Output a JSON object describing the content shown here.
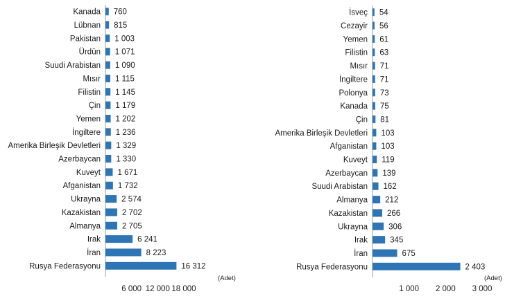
{
  "chart_data": [
    {
      "type": "bar",
      "orientation": "horizontal",
      "unit_label": "(Adet)",
      "categories": [
        "Kanada",
        "Lübnan",
        "Pakistan",
        "Ürdün",
        "Suudi Arabistan",
        "Mısır",
        "Filistin",
        "Çin",
        "Yemen",
        "İngiltere",
        "Amerika Birleşik Devletleri",
        "Azerbaycan",
        "Kuveyt",
        "Afganistan",
        "Ukrayna",
        "Kazakistan",
        "Almanya",
        "Irak",
        "İran",
        "Rusya Federasyonu"
      ],
      "values": [
        760,
        815,
        1003,
        1071,
        1090,
        1115,
        1145,
        1179,
        1202,
        1236,
        1329,
        1330,
        1671,
        1732,
        2574,
        2702,
        2705,
        6241,
        8223,
        16312
      ],
      "value_labels": [
        "760",
        "815",
        "1 003",
        "1 071",
        "1 090",
        "1 115",
        "1 145",
        "1 179",
        "1 202",
        "1 236",
        "1 329",
        "1 330",
        "1 671",
        "1 732",
        "2 574",
        "2 702",
        "2 705",
        "6 241",
        "8 223",
        "16 312"
      ],
      "xlim": [
        0,
        18000
      ],
      "ticks": [
        6000,
        12000,
        18000
      ],
      "tick_labels": [
        "6 000",
        "12 000",
        "18 000"
      ],
      "bar_color": "#2e75b6"
    },
    {
      "type": "bar",
      "orientation": "horizontal",
      "unit_label": "(Adet)",
      "categories": [
        "İsveç",
        "Cezayir",
        "Yemen",
        "Filistin",
        "Mısır",
        "İngiltere",
        "Polonya",
        "Kanada",
        "Çin",
        "Amerika Birleşik Devletleri",
        "Afganistan",
        "Kuveyt",
        "Azerbaycan",
        "Suudi Arabistan",
        "Almanya",
        "Kazakistan",
        "Ukrayna",
        "Irak",
        "İran",
        "Rusya Federasyonu"
      ],
      "values": [
        54,
        56,
        61,
        63,
        71,
        71,
        73,
        75,
        81,
        103,
        103,
        119,
        139,
        162,
        212,
        266,
        306,
        345,
        675,
        2403
      ],
      "value_labels": [
        "54",
        "56",
        "61",
        "63",
        "71",
        "71",
        "73",
        "75",
        "81",
        "103",
        "103",
        "119",
        "139",
        "162",
        "212",
        "266",
        "306",
        "345",
        "675",
        "2 403"
      ],
      "xlim": [
        0,
        3000
      ],
      "ticks": [
        1000,
        2000,
        3000
      ],
      "tick_labels": [
        "1 000",
        "2 000",
        "3 000"
      ],
      "bar_color": "#2e75b6"
    }
  ]
}
